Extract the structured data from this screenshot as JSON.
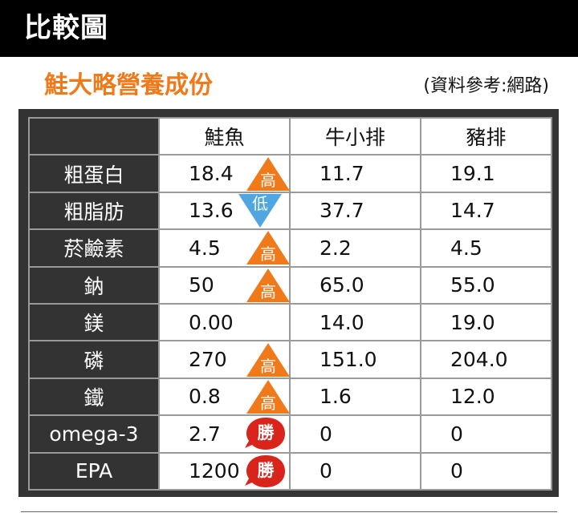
{
  "header": {
    "title": "比較圖"
  },
  "subtitle": "鮭大略營養成份",
  "source": "(資料參考:網路)",
  "table": {
    "columns": [
      "鮭魚",
      "牛小排",
      "豬排"
    ],
    "rows": [
      {
        "label": "粗蛋白",
        "values": [
          "18.4",
          "11.7",
          "19.1"
        ],
        "badge": "高",
        "badge_type": "up"
      },
      {
        "label": "粗脂肪",
        "values": [
          "13.6",
          "37.7",
          "14.7"
        ],
        "badge": "低",
        "badge_type": "down"
      },
      {
        "label": "菸鹼素",
        "values": [
          "4.5",
          "2.2",
          "4.5"
        ],
        "badge": "高",
        "badge_type": "up"
      },
      {
        "label": "鈉",
        "values": [
          "50",
          "65.0",
          "55.0"
        ],
        "badge": "高",
        "badge_type": "up"
      },
      {
        "label": "鎂",
        "values": [
          "0.00",
          "14.0",
          "19.0"
        ],
        "badge": "",
        "badge_type": "none"
      },
      {
        "label": "磷",
        "values": [
          "270",
          "151.0",
          "204.0"
        ],
        "badge": "高",
        "badge_type": "up"
      },
      {
        "label": "鐵",
        "values": [
          "0.8",
          "1.6",
          "12.0"
        ],
        "badge": "高",
        "badge_type": "up"
      },
      {
        "label": "omega-3",
        "values": [
          "2.7",
          "0",
          "0"
        ],
        "badge": "勝",
        "badge_type": "win"
      },
      {
        "label": "EPA",
        "values": [
          "1200",
          "0",
          "0"
        ],
        "badge": "勝",
        "badge_type": "win"
      }
    ]
  },
  "colors": {
    "accent_orange": "#f07a1a",
    "low_blue": "#4fa6e0",
    "win_red": "#d9241c",
    "dark": "#333333"
  }
}
